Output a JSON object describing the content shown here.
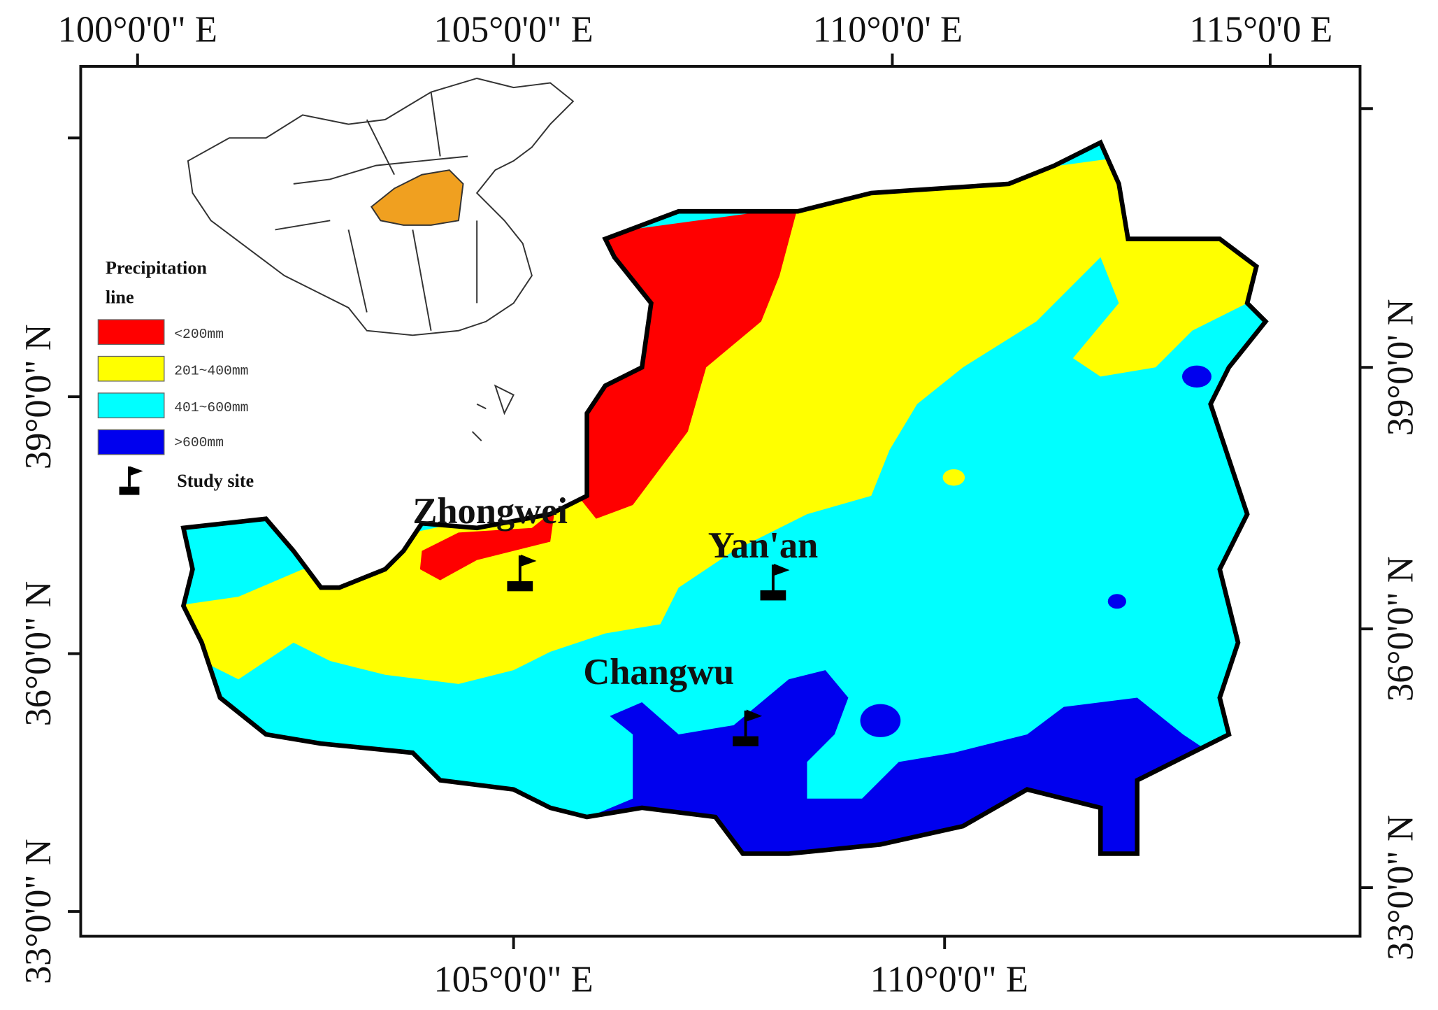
{
  "axes": {
    "top": [
      "100°0'0\" E",
      "105°0'0\" E",
      "110°0'0' E",
      "115°0'0 E"
    ],
    "bottom": [
      "105°0'0\" E",
      "110°0'0\" E"
    ],
    "left": [
      "39°0'0\" N",
      "36°0'0\" N",
      "33°0'0\" N"
    ],
    "right": [
      "39°0'0' N",
      "36°0'0\" N",
      "33°0'0\" N"
    ]
  },
  "legend": {
    "title_lines": [
      "Precipitation",
      "line"
    ],
    "items": [
      "<200mm",
      "201~400mm",
      "401~600mm",
      ">600mm"
    ],
    "study_site": "Study site"
  },
  "sites": [
    "Zhongwei",
    "Yan'an",
    "Changwu"
  ]
}
